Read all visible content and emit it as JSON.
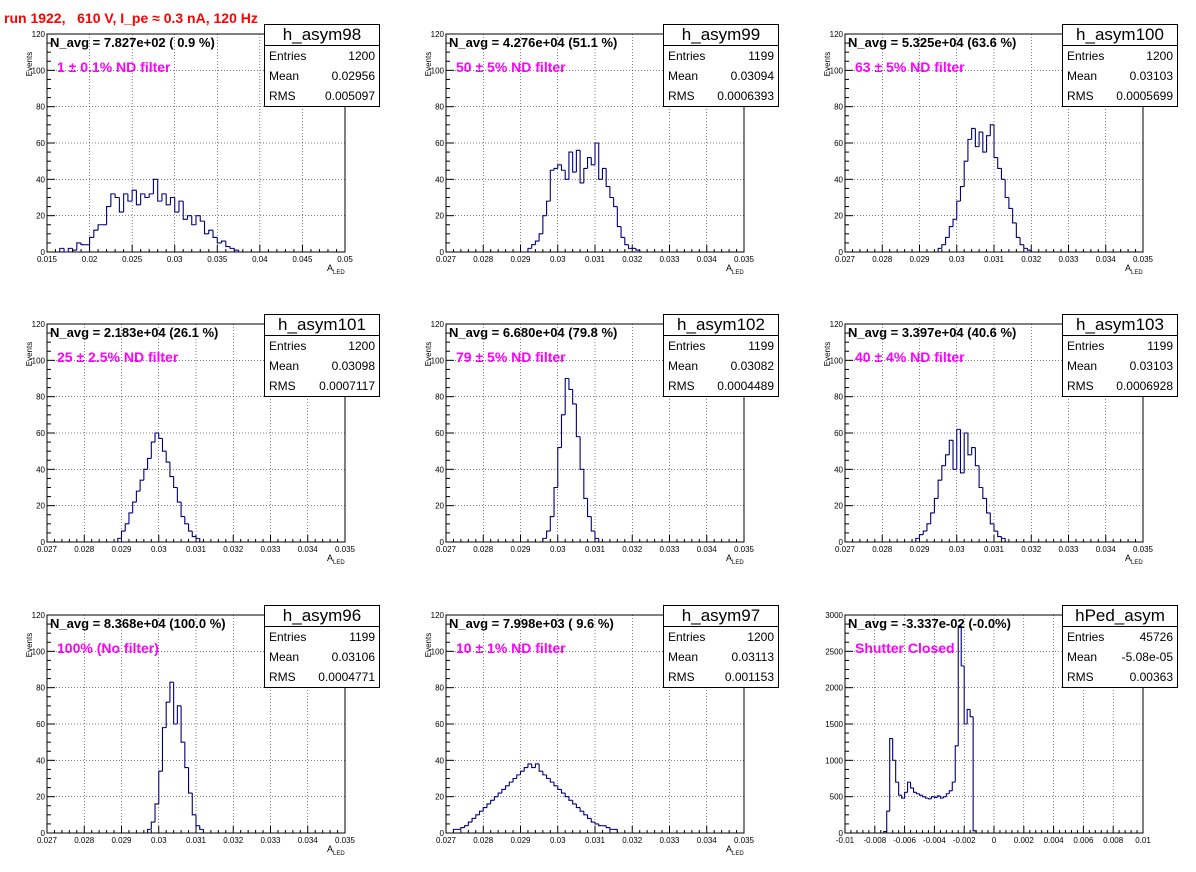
{
  "run_title": "run 1922,   610 V, I_pe ≈ 0.3 nA, 120 Hz",
  "axis": {
    "ylabel": "Events",
    "xlabel_main": "A",
    "xlabel_sub": "LED"
  },
  "colors": {
    "title": "#ff0000",
    "filter_text": "#ff00ff",
    "histogram": "#00007f"
  },
  "panels": [
    {
      "hist_name": "h_asym98",
      "navg": "N_avg = 7.827e+02 ( 0.9 %)",
      "filter": "1 ± 0.1% ND filter",
      "stats": {
        "entries_label": "Entries",
        "entries": "1200",
        "mean_label": "Mean",
        "mean": "0.02956",
        "rms_label": "RMS",
        "rms": "0.005097"
      }
    },
    {
      "hist_name": "h_asym99",
      "navg": "N_avg = 4.276e+04 (51.1 %)",
      "filter": "50 ± 5% ND filter",
      "stats": {
        "entries_label": "Entries",
        "entries": "1199",
        "mean_label": "Mean",
        "mean": "0.03094",
        "rms_label": "RMS",
        "rms": "0.0006393"
      }
    },
    {
      "hist_name": "h_asym100",
      "navg": "N_avg = 5.325e+04 (63.6 %)",
      "filter": "63 ± 5% ND filter",
      "stats": {
        "entries_label": "Entries",
        "entries": "1200",
        "mean_label": "Mean",
        "mean": "0.03103",
        "rms_label": "RMS",
        "rms": "0.0005699"
      }
    },
    {
      "hist_name": "h_asym101",
      "navg": "N_avg = 2.183e+04 (26.1 %)",
      "filter": "25 ± 2.5% ND filter",
      "stats": {
        "entries_label": "Entries",
        "entries": "1200",
        "mean_label": "Mean",
        "mean": "0.03098",
        "rms_label": "RMS",
        "rms": "0.0007117"
      }
    },
    {
      "hist_name": "h_asym102",
      "navg": "N_avg = 6.680e+04 (79.8 %)",
      "filter": "79 ± 5% ND filter",
      "stats": {
        "entries_label": "Entries",
        "entries": "1199",
        "mean_label": "Mean",
        "mean": "0.03082",
        "rms_label": "RMS",
        "rms": "0.0004489"
      }
    },
    {
      "hist_name": "h_asym103",
      "navg": "N_avg = 3.397e+04 (40.6 %)",
      "filter": "40 ± 4% ND filter",
      "stats": {
        "entries_label": "Entries",
        "entries": "1199",
        "mean_label": "Mean",
        "mean": "0.03103",
        "rms_label": "RMS",
        "rms": "0.0006928"
      }
    },
    {
      "hist_name": "h_asym96",
      "navg": "N_avg = 8.368e+04 (100.0 %)",
      "filter": "100% (No filter)",
      "stats": {
        "entries_label": "Entries",
        "entries": "1199",
        "mean_label": "Mean",
        "mean": "0.03106",
        "rms_label": "RMS",
        "rms": "0.0004771"
      }
    },
    {
      "hist_name": "h_asym97",
      "navg": "N_avg = 7.998e+03 ( 9.6 %)",
      "filter": "10 ± 1% ND filter",
      "stats": {
        "entries_label": "Entries",
        "entries": "1200",
        "mean_label": "Mean",
        "mean": "0.03113",
        "rms_label": "RMS",
        "rms": "0.001153"
      }
    },
    {
      "hist_name": "hPed_asym",
      "navg": "N_avg = -3.337e-02 (-0.0%)",
      "filter": "Shutter Closed",
      "stats": {
        "entries_label": "Entries",
        "entries": "45726",
        "mean_label": "Mean",
        "mean": "-5.08e-05",
        "rms_label": "RMS",
        "rms": "0.00363"
      }
    }
  ],
  "chart_data": [
    {
      "type": "bar",
      "title": "h_asym98",
      "xlabel": "A_LED",
      "ylabel": "Events",
      "xlim": [
        0.015,
        0.05
      ],
      "ylim": [
        0,
        120
      ],
      "xticks": [
        0.015,
        0.02,
        0.025,
        0.03,
        0.035,
        0.04,
        0.045,
        0.05
      ],
      "yticks": [
        0,
        20,
        40,
        60,
        80,
        100,
        120
      ],
      "xtick_labels": [
        "0.015",
        "0.02",
        "0.025",
        "0.03",
        "0.035",
        "0.04",
        "0.045",
        "0.05"
      ],
      "bin_start": 0.0165,
      "bin_width": 0.0005,
      "values": [
        2,
        0,
        2,
        1,
        5,
        4,
        4,
        8,
        12,
        15,
        15,
        25,
        32,
        30,
        22,
        32,
        28,
        34,
        26,
        32,
        30,
        32,
        40,
        28,
        32,
        26,
        30,
        22,
        28,
        18,
        20,
        15,
        20,
        17,
        10,
        12,
        8,
        5,
        6,
        3,
        2,
        1
      ]
    },
    {
      "type": "bar",
      "title": "h_asym99",
      "xlabel": "A_LED",
      "ylabel": "Events",
      "xlim": [
        0.027,
        0.035
      ],
      "ylim": [
        0,
        120
      ],
      "xticks": [
        0.027,
        0.028,
        0.029,
        0.03,
        0.031,
        0.032,
        0.033,
        0.034,
        0.035
      ],
      "yticks": [
        0,
        20,
        40,
        60,
        80,
        100,
        120
      ],
      "xtick_labels": [
        "0.027",
        "0.028",
        "0.029",
        "0.03",
        "0.031",
        "0.032",
        "0.033",
        "0.034",
        "0.035"
      ],
      "bin_start": 0.0292,
      "bin_width": 0.0001,
      "values": [
        2,
        4,
        6,
        10,
        20,
        28,
        45,
        46,
        48,
        45,
        40,
        55,
        44,
        56,
        38,
        46,
        52,
        48,
        60,
        40,
        46,
        36,
        30,
        25,
        14,
        8,
        4,
        2,
        2,
        1
      ]
    },
    {
      "type": "bar",
      "title": "h_asym100",
      "xlabel": "A_LED",
      "ylabel": "Events",
      "xlim": [
        0.027,
        0.035
      ],
      "ylim": [
        0,
        120
      ],
      "xticks": [
        0.027,
        0.028,
        0.029,
        0.03,
        0.031,
        0.032,
        0.033,
        0.034,
        0.035
      ],
      "yticks": [
        0,
        20,
        40,
        60,
        80,
        100,
        120
      ],
      "xtick_labels": [
        "0.027",
        "0.028",
        "0.029",
        "0.03",
        "0.031",
        "0.032",
        "0.033",
        "0.034",
        "0.035"
      ],
      "bin_start": 0.0295,
      "bin_width": 0.0001,
      "values": [
        2,
        4,
        8,
        14,
        18,
        28,
        36,
        50,
        62,
        68,
        58,
        66,
        55,
        64,
        70,
        52,
        46,
        40,
        30,
        24,
        16,
        8,
        4,
        2,
        1
      ]
    },
    {
      "type": "bar",
      "title": "h_asym101",
      "xlabel": "A_LED",
      "ylabel": "Events",
      "xlim": [
        0.027,
        0.035
      ],
      "ylim": [
        0,
        120
      ],
      "xticks": [
        0.027,
        0.028,
        0.029,
        0.03,
        0.031,
        0.032,
        0.033,
        0.034,
        0.035
      ],
      "yticks": [
        0,
        20,
        40,
        60,
        80,
        100,
        120
      ],
      "xtick_labels": [
        "0.027",
        "0.028",
        "0.029",
        "0.03",
        "0.031",
        "0.032",
        "0.033",
        "0.034",
        "0.035"
      ],
      "bin_start": 0.0289,
      "bin_width": 0.0001,
      "values": [
        2,
        6,
        10,
        16,
        22,
        28,
        34,
        40,
        46,
        55,
        60,
        57,
        50,
        44,
        36,
        30,
        22,
        14,
        10,
        6,
        3,
        2
      ]
    },
    {
      "type": "bar",
      "title": "h_asym102",
      "xlabel": "A_LED",
      "ylabel": "Events",
      "xlim": [
        0.027,
        0.035
      ],
      "ylim": [
        0,
        120
      ],
      "xticks": [
        0.027,
        0.028,
        0.029,
        0.03,
        0.031,
        0.032,
        0.033,
        0.034,
        0.035
      ],
      "yticks": [
        0,
        20,
        40,
        60,
        80,
        100,
        120
      ],
      "xtick_labels": [
        "0.027",
        "0.028",
        "0.029",
        "0.03",
        "0.031",
        "0.032",
        "0.033",
        "0.034",
        "0.035"
      ],
      "bin_start": 0.0296,
      "bin_width": 0.0001,
      "values": [
        2,
        6,
        14,
        30,
        52,
        70,
        90,
        84,
        76,
        58,
        40,
        24,
        14,
        6,
        2
      ]
    },
    {
      "type": "bar",
      "title": "h_asym103",
      "xlabel": "A_LED",
      "ylabel": "Events",
      "xlim": [
        0.027,
        0.035
      ],
      "ylim": [
        0,
        120
      ],
      "xticks": [
        0.027,
        0.028,
        0.029,
        0.03,
        0.031,
        0.032,
        0.033,
        0.034,
        0.035
      ],
      "yticks": [
        0,
        20,
        40,
        60,
        80,
        100,
        120
      ],
      "xtick_labels": [
        "0.027",
        "0.028",
        "0.029",
        "0.03",
        "0.031",
        "0.032",
        "0.033",
        "0.034",
        "0.035"
      ],
      "bin_start": 0.0289,
      "bin_width": 0.0001,
      "values": [
        2,
        4,
        6,
        10,
        16,
        24,
        34,
        42,
        48,
        56,
        40,
        62,
        38,
        60,
        48,
        52,
        42,
        30,
        24,
        16,
        10,
        6,
        3,
        2
      ]
    },
    {
      "type": "bar",
      "title": "h_asym96",
      "xlabel": "A_LED",
      "ylabel": "Events",
      "xlim": [
        0.027,
        0.035
      ],
      "ylim": [
        0,
        120
      ],
      "xticks": [
        0.027,
        0.028,
        0.029,
        0.03,
        0.031,
        0.032,
        0.033,
        0.034,
        0.035
      ],
      "yticks": [
        0,
        20,
        40,
        60,
        80,
        100,
        120
      ],
      "xtick_labels": [
        "0.027",
        "0.028",
        "0.029",
        "0.03",
        "0.031",
        "0.032",
        "0.033",
        "0.034",
        "0.035"
      ],
      "bin_start": 0.0297,
      "bin_width": 0.0001,
      "values": [
        2,
        6,
        16,
        34,
        58,
        72,
        83,
        60,
        70,
        50,
        36,
        22,
        10,
        4,
        2
      ]
    },
    {
      "type": "bar",
      "title": "h_asym97",
      "xlabel": "A_LED",
      "ylabel": "Events",
      "xlim": [
        0.027,
        0.035
      ],
      "ylim": [
        0,
        120
      ],
      "xticks": [
        0.027,
        0.028,
        0.029,
        0.03,
        0.031,
        0.032,
        0.033,
        0.034,
        0.035
      ],
      "yticks": [
        0,
        20,
        40,
        60,
        80,
        100,
        120
      ],
      "xtick_labels": [
        "0.027",
        "0.028",
        "0.029",
        "0.03",
        "0.031",
        "0.032",
        "0.033",
        "0.034",
        "0.035"
      ],
      "bin_start": 0.0272,
      "bin_width": 0.0001,
      "values": [
        2,
        2,
        3,
        4,
        6,
        8,
        10,
        12,
        14,
        16,
        18,
        20,
        22,
        24,
        26,
        28,
        30,
        32,
        34,
        36,
        38,
        36,
        38,
        34,
        32,
        30,
        28,
        26,
        24,
        22,
        20,
        18,
        16,
        14,
        12,
        10,
        8,
        6,
        5,
        4,
        4,
        3,
        2,
        2
      ]
    },
    {
      "type": "bar",
      "title": "hPed_asym",
      "xlabel": "",
      "ylabel": "",
      "xlim": [
        -0.01,
        0.01
      ],
      "ylim": [
        0,
        3000
      ],
      "xticks": [
        -0.01,
        -0.008,
        -0.006,
        -0.004,
        -0.002,
        0,
        0.002,
        0.004,
        0.006,
        0.008,
        0.01
      ],
      "yticks": [
        0,
        500,
        1000,
        1500,
        2000,
        2500,
        3000
      ],
      "xtick_labels": [
        "-0.01",
        "-0.008",
        "-0.006",
        "-0.004",
        "-0.002",
        "0",
        "0.002",
        "0.004",
        "0.006",
        "0.008",
        "0.01"
      ],
      "bin_start": -0.0074,
      "bin_width": 0.0002,
      "values": [
        20,
        300,
        1300,
        1000,
        700,
        520,
        480,
        560,
        700,
        620,
        560,
        540,
        520,
        500,
        480,
        470,
        500,
        490,
        510,
        480,
        500,
        540,
        580,
        700,
        1200,
        2850,
        2300,
        1500,
        1700,
        1600,
        30
      ]
    }
  ]
}
